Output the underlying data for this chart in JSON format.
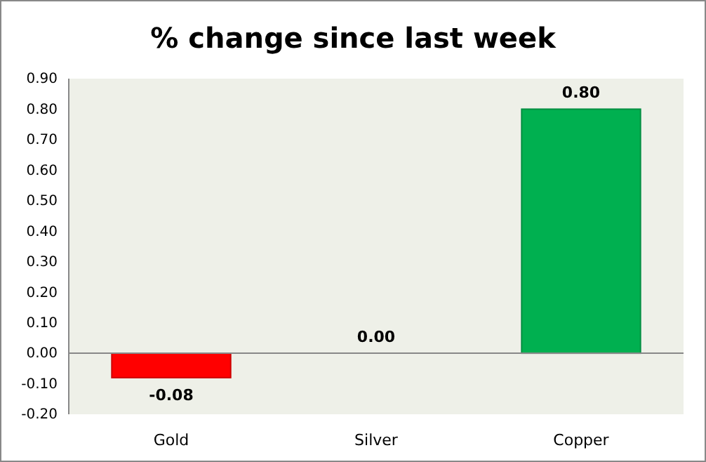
{
  "chart_data": {
    "type": "bar",
    "title": "% change since last week",
    "categories": [
      "Gold",
      "Silver",
      "Copper"
    ],
    "values": [
      -0.08,
      0.0,
      0.8
    ],
    "colors": [
      "#ff0000",
      "#00b050",
      "#00b050"
    ],
    "ylim": [
      -0.2,
      0.9
    ],
    "yticks": [
      {
        "value": -0.2,
        "label": "-0.20"
      },
      {
        "value": -0.1,
        "label": "-0.10"
      },
      {
        "value": 0,
        "label": "0.00"
      },
      {
        "value": 0.1,
        "label": "0.10"
      },
      {
        "value": 0.2,
        "label": "0.20"
      },
      {
        "value": 0.3,
        "label": "0.30"
      },
      {
        "value": 0.4,
        "label": "0.40"
      },
      {
        "value": 0.5,
        "label": "0.50"
      },
      {
        "value": 0.6,
        "label": "0.60"
      },
      {
        "value": 0.7,
        "label": "0.70"
      },
      {
        "value": 0.8,
        "label": "0.80"
      },
      {
        "value": 0.9,
        "label": "0.90"
      }
    ],
    "value_labels": [
      "-0.08",
      "0.00",
      "0.80"
    ]
  }
}
